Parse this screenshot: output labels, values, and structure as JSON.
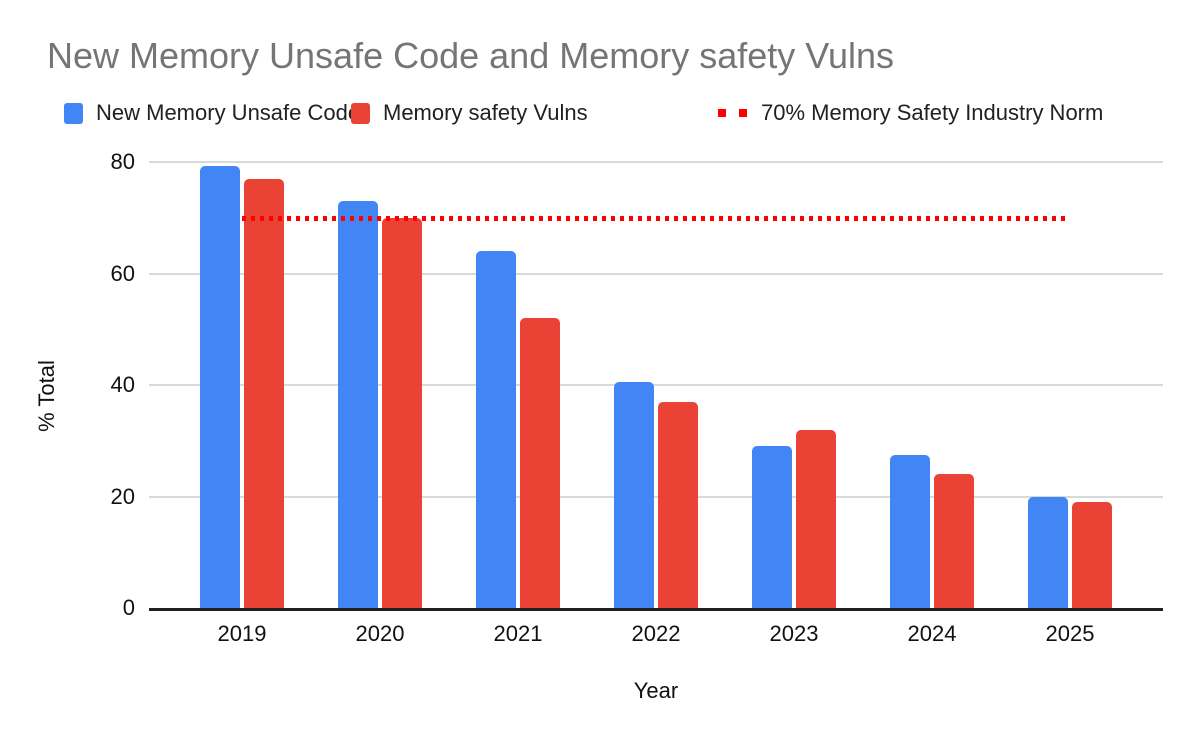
{
  "chart_data": {
    "type": "bar",
    "title": "New Memory Unsafe Code and Memory safety Vulns",
    "categories": [
      "2019",
      "2020",
      "2021",
      "2022",
      "2023",
      "2024",
      "2025"
    ],
    "series": [
      {
        "name": "New Memory Unsafe Code",
        "color": "#4285F4",
        "values": [
          79.3,
          73,
          64,
          40.5,
          29,
          27.5,
          20
        ]
      },
      {
        "name": "Memory safety Vulns",
        "color": "#EA4335",
        "values": [
          77,
          70,
          52,
          37,
          32,
          24,
          19
        ]
      }
    ],
    "reference_line": {
      "label": "70% Memory Safety Industry Norm",
      "value": 70,
      "color": "#FF0000",
      "style": "dotted"
    },
    "xlabel": "Year",
    "ylabel": "% Total",
    "ylim": [
      0,
      80
    ],
    "yticks": [
      0,
      20,
      40,
      60,
      80
    ],
    "grid": true,
    "legend_position": "top",
    "colors": {
      "title_text": "#757575",
      "axis_text": "#111111",
      "gridline": "#d9d9d9",
      "axis_line": "#1f1f1f",
      "background": "#ffffff"
    }
  }
}
